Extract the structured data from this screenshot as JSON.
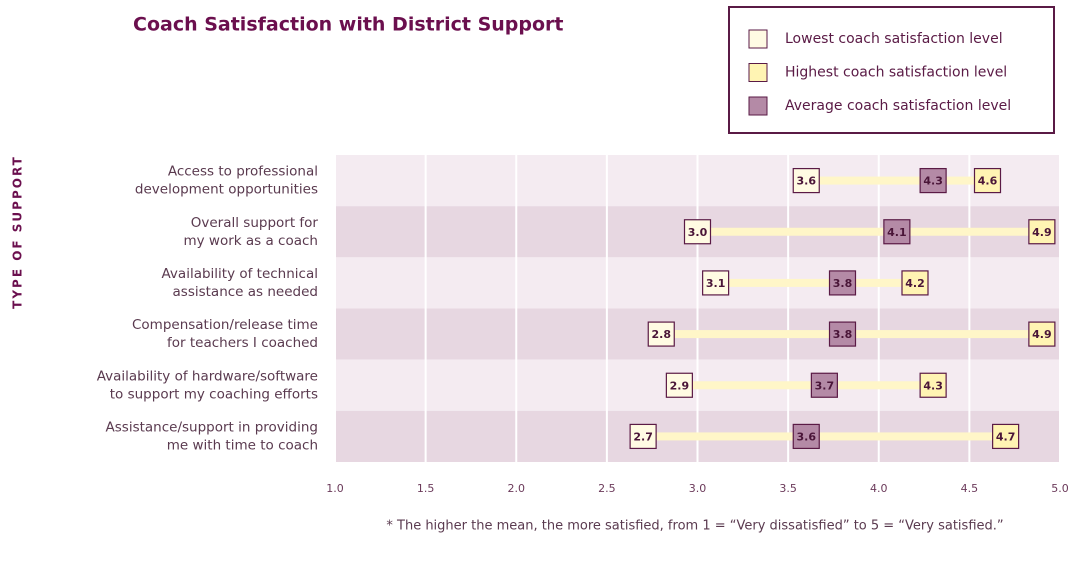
{
  "chart_data": {
    "type": "range",
    "title": "Coach Satisfaction with District Support",
    "y_axis_label": "TYPE OF SUPPORT",
    "footnote": "* The higher the mean, the more satisfied, from 1 = “Very dissatisfied” to 5 = “Very satisfied.”",
    "categories": [
      [
        "Access to professional",
        "development opportunities"
      ],
      [
        "Overall support for",
        "my work as a coach"
      ],
      [
        "Availability of technical",
        "assistance as needed"
      ],
      [
        "Compensation/release time",
        "for teachers I coached"
      ],
      [
        "Availability of hardware/software",
        "to support my coaching efforts"
      ],
      [
        "Assistance/support in providing",
        "me with time to coach"
      ]
    ],
    "series": [
      {
        "name": "Lowest coach satisfaction level",
        "color": "#fffbe3",
        "values": [
          3.6,
          3.0,
          3.1,
          2.8,
          2.9,
          2.7
        ],
        "value_labels": [
          "3.6",
          "3.0",
          "3.1",
          "2.8",
          "2.9",
          "2.7"
        ]
      },
      {
        "name": "Highest coach satisfaction level",
        "color": "#fff4b3",
        "values": [
          4.6,
          4.9,
          4.2,
          4.9,
          4.3,
          4.7
        ],
        "value_labels": [
          "4.6",
          "4.9",
          "4.2",
          "4.9",
          "4.3",
          "4.7"
        ]
      },
      {
        "name": "Average coach satisfaction level",
        "color": "#b48aa6",
        "values": [
          4.3,
          4.1,
          3.8,
          3.8,
          3.7,
          3.6
        ],
        "value_labels": [
          "4.3",
          "4.1",
          "3.8",
          "3.8",
          "3.7",
          "3.6"
        ]
      }
    ],
    "range_color": "#fff6c8",
    "xlim": [
      1,
      5
    ],
    "xticks": [
      {
        "value": 1,
        "label": "1.0"
      },
      1.5,
      {
        "value": 2,
        "label": "2.0"
      },
      2.5,
      {
        "value": 3,
        "label": "3.0"
      },
      3.5,
      {
        "value": 4,
        "label": "4.0"
      },
      4.5,
      {
        "value": 5,
        "label": "5.0"
      }
    ],
    "grid": true
  }
}
